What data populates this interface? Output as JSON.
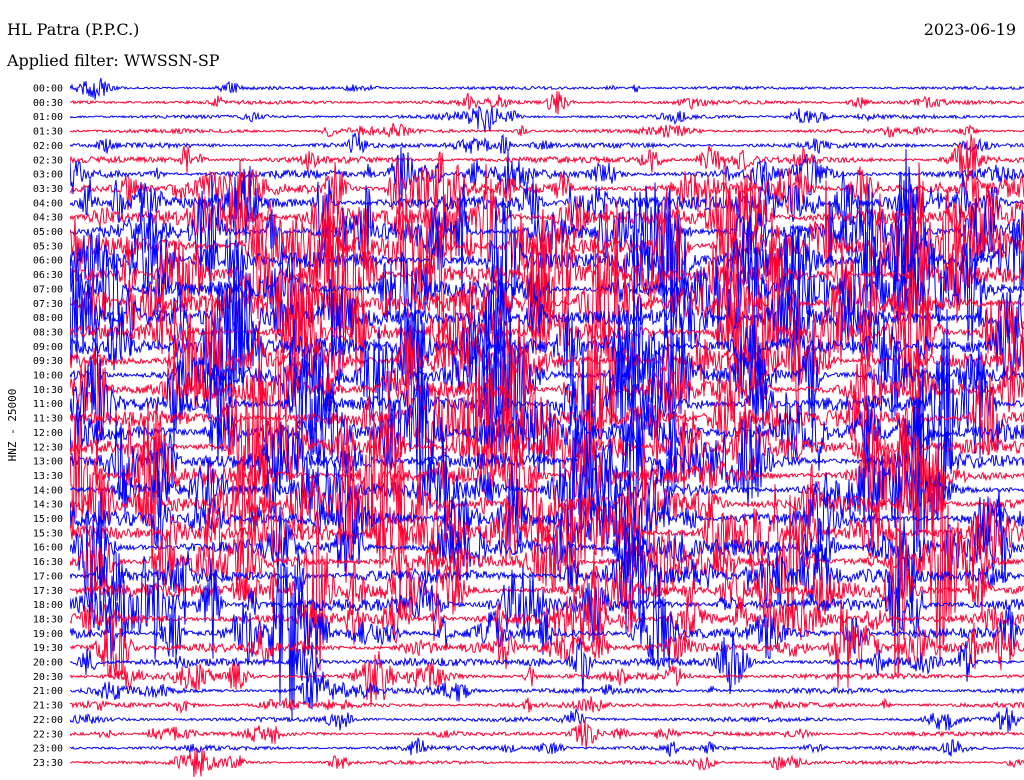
{
  "header": {
    "station": "HL Patra (P.P.C.)",
    "date": "2023-06-19",
    "filter_label": "Applied filter: WWSSN-SP"
  },
  "chart_data": {
    "type": "line",
    "title": "HL Patra (P.P.C.)",
    "date": "2023-06-19",
    "filter": "WWSSN-SP",
    "ylabel": "HNZ - 25000",
    "row_labels": [
      "00:00",
      "00:30",
      "01:00",
      "01:30",
      "02:00",
      "02:30",
      "03:00",
      "03:30",
      "04:00",
      "04:30",
      "05:00",
      "05:30",
      "06:00",
      "06:30",
      "07:00",
      "07:30",
      "08:00",
      "08:30",
      "09:00",
      "09:30",
      "10:00",
      "10:30",
      "11:00",
      "11:30",
      "12:00",
      "12:30",
      "13:00",
      "13:30",
      "14:00",
      "14:30",
      "15:00",
      "15:30",
      "16:00",
      "16:30",
      "17:00",
      "17:30",
      "18:00",
      "18:30",
      "19:00",
      "19:30",
      "20:00",
      "20:30",
      "21:00",
      "21:30",
      "22:00",
      "22:30",
      "23:00",
      "23:30"
    ],
    "row_colors": [
      "#0000ff",
      "#ff0033"
    ],
    "relative_activity": [
      0.4,
      0.6,
      0.5,
      0.6,
      0.8,
      1.1,
      1.5,
      2.1,
      2.6,
      2.9,
      3.1,
      3.2,
      3.3,
      3.3,
      3.2,
      3.1,
      3.0,
      3.0,
      3.0,
      3.0,
      3.0,
      3.0,
      3.0,
      3.0,
      3.0,
      3.0,
      3.0,
      3.0,
      3.0,
      3.0,
      3.0,
      2.9,
      2.9,
      2.8,
      2.7,
      2.6,
      2.4,
      2.2,
      2.0,
      1.7,
      1.4,
      1.1,
      0.9,
      0.8,
      0.7,
      0.6,
      0.6,
      0.5
    ]
  }
}
